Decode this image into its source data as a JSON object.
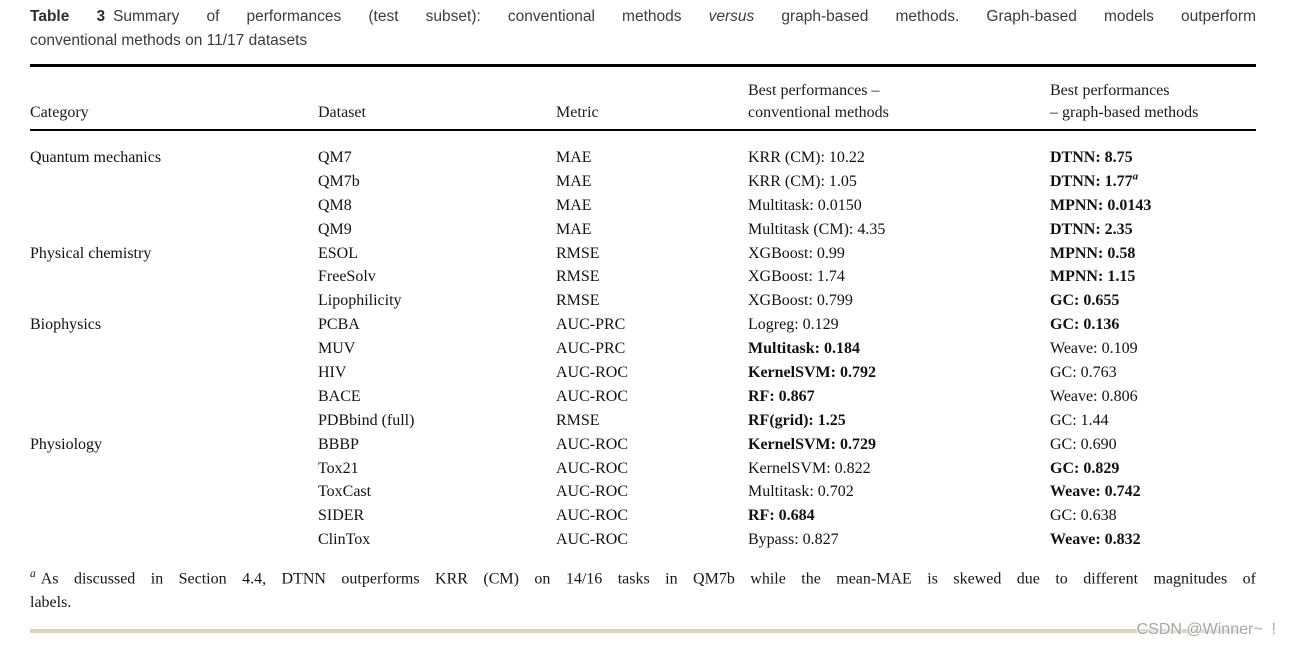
{
  "caption": {
    "label": "Table 3",
    "text_before_italic": "Summary of performances (test subset): conventional methods ",
    "italic": "versus",
    "text_after_italic": " graph-based methods. Graph-based models outperform",
    "line2": "conventional methods on 11/17 datasets"
  },
  "header": {
    "category": "Category",
    "dataset": "Dataset",
    "metric": "Metric",
    "conv_line1": "Best performances –",
    "conv_line2": "conventional methods",
    "graph_line1": "Best performances",
    "graph_line2": "– graph-based methods"
  },
  "table": {
    "rows": [
      {
        "category": "Quantum mechanics",
        "dataset": "QM7",
        "metric": "MAE",
        "conv": "KRR (CM): 10.22",
        "conv_bold": "",
        "graph": "DTNN: 8.75",
        "graph_bold": "bold"
      },
      {
        "category": "",
        "dataset": "QM7b",
        "metric": "MAE",
        "conv": "KRR (CM): 1.05",
        "conv_bold": "",
        "graph": "DTNN: 1.77",
        "graph_bold": "bold",
        "graph_sup": "a"
      },
      {
        "category": "",
        "dataset": "QM8",
        "metric": "MAE",
        "conv": "Multitask: 0.0150",
        "conv_bold": "",
        "graph": "MPNN: 0.0143",
        "graph_bold": "bold"
      },
      {
        "category": "",
        "dataset": "QM9",
        "metric": "MAE",
        "conv": "Multitask (CM): 4.35",
        "conv_bold": "",
        "graph": "DTNN: 2.35",
        "graph_bold": "bold"
      },
      {
        "category": "Physical chemistry",
        "dataset": "ESOL",
        "metric": "RMSE",
        "conv": "XGBoost: 0.99",
        "conv_bold": "",
        "graph": "MPNN: 0.58",
        "graph_bold": "bold"
      },
      {
        "category": "",
        "dataset": "FreeSolv",
        "metric": "RMSE",
        "conv": "XGBoost: 1.74",
        "conv_bold": "",
        "graph": "MPNN: 1.15",
        "graph_bold": "bold"
      },
      {
        "category": "",
        "dataset": "Lipophilicity",
        "metric": "RMSE",
        "conv": "XGBoost: 0.799",
        "conv_bold": "",
        "graph": "GC: 0.655",
        "graph_bold": "bold"
      },
      {
        "category": "Biophysics",
        "dataset": "PCBA",
        "metric": "AUC-PRC",
        "conv": "Logreg: 0.129",
        "conv_bold": "",
        "graph": "GC: 0.136",
        "graph_bold": "bold"
      },
      {
        "category": "",
        "dataset": "MUV",
        "metric": "AUC-PRC",
        "conv": "Multitask: 0.184",
        "conv_bold": "bold",
        "graph": "Weave: 0.109",
        "graph_bold": ""
      },
      {
        "category": "",
        "dataset": "HIV",
        "metric": "AUC-ROC",
        "conv": "KernelSVM: 0.792",
        "conv_bold": "bold",
        "graph": "GC: 0.763",
        "graph_bold": ""
      },
      {
        "category": "",
        "dataset": "BACE",
        "metric": "AUC-ROC",
        "conv": "RF: 0.867",
        "conv_bold": "bold",
        "graph": "Weave: 0.806",
        "graph_bold": ""
      },
      {
        "category": "",
        "dataset": "PDBbind (full)",
        "metric": "RMSE",
        "conv": "RF(grid): 1.25",
        "conv_bold": "bold",
        "graph": "GC: 1.44",
        "graph_bold": ""
      },
      {
        "category": "Physiology",
        "dataset": "BBBP",
        "metric": "AUC-ROC",
        "conv": "KernelSVM: 0.729",
        "conv_bold": "bold",
        "graph": "GC: 0.690",
        "graph_bold": ""
      },
      {
        "category": "",
        "dataset": "Tox21",
        "metric": "AUC-ROC",
        "conv": "KernelSVM: 0.822",
        "conv_bold": "",
        "graph": "GC: 0.829",
        "graph_bold": "bold"
      },
      {
        "category": "",
        "dataset": "ToxCast",
        "metric": "AUC-ROC",
        "conv": "Multitask: 0.702",
        "conv_bold": "",
        "graph": "Weave: 0.742",
        "graph_bold": "bold"
      },
      {
        "category": "",
        "dataset": "SIDER",
        "metric": "AUC-ROC",
        "conv": "RF: 0.684",
        "conv_bold": "bold",
        "graph": "GC: 0.638",
        "graph_bold": ""
      },
      {
        "category": "",
        "dataset": "ClinTox",
        "metric": "AUC-ROC",
        "conv": "Bypass: 0.827",
        "conv_bold": "",
        "graph": "Weave: 0.832",
        "graph_bold": "bold"
      }
    ]
  },
  "footnote": {
    "marker": "a",
    "line1": "As discussed in Section 4.4, DTNN outperforms KRR (CM) on 14/16 tasks in QM7b while the mean-MAE is skewed due to different magnitudes of",
    "line2": "labels."
  },
  "watermark": {
    "text": "CSDN @Winner~  !",
    "line_color": "#d9d2bc",
    "text_color": "#a6a6a6"
  }
}
